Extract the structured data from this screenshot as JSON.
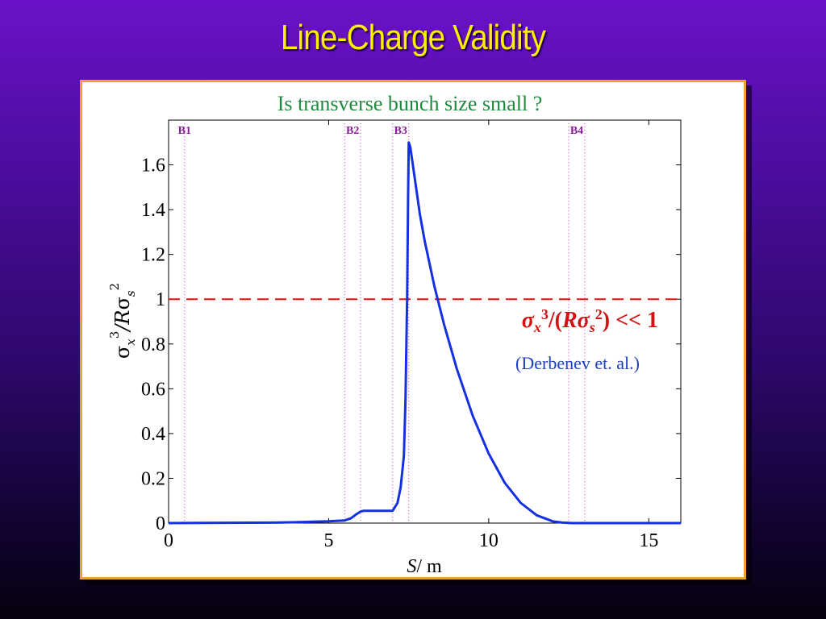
{
  "slide": {
    "title": "Line-Charge Validity"
  },
  "chart_data": {
    "type": "line",
    "title": "Is transverse bunch size small ?",
    "xlabel_italic": "S",
    "xlabel_unit": "/ m",
    "ylabel": "σ_x^3/Rσ_s^2",
    "xlim": [
      0,
      16
    ],
    "ylim": [
      0,
      1.8
    ],
    "xticks": [
      0,
      5,
      10,
      15
    ],
    "yticks": [
      0,
      0.2,
      0.4,
      0.6,
      0.8,
      1,
      1.2,
      1.4,
      1.6
    ],
    "grid": false,
    "series": [
      {
        "color": "#1530e0",
        "x": [
          0,
          3.3,
          4.0,
          4.5,
          5.0,
          5.5,
          5.7,
          5.85,
          6.0,
          6.1,
          7.0,
          7.15,
          7.25,
          7.35,
          7.4,
          7.45,
          7.48,
          7.5,
          7.55,
          7.6,
          7.7,
          7.85,
          8.0,
          8.3,
          8.6,
          9.0,
          9.5,
          10.0,
          10.5,
          11.0,
          11.5,
          12.0,
          12.3,
          12.6,
          13.0,
          16.0
        ],
        "y": [
          0,
          0.002,
          0.004,
          0.006,
          0.008,
          0.012,
          0.022,
          0.038,
          0.052,
          0.055,
          0.055,
          0.09,
          0.16,
          0.3,
          0.55,
          1.0,
          1.45,
          1.7,
          1.68,
          1.63,
          1.53,
          1.38,
          1.26,
          1.06,
          0.89,
          0.69,
          0.48,
          0.31,
          0.18,
          0.09,
          0.035,
          0.008,
          0.002,
          0,
          0,
          0
        ]
      }
    ],
    "threshold_line": {
      "y": 1,
      "color": "#e01010",
      "style": "dashed"
    },
    "bend_markers": {
      "labels": [
        "B1",
        "B2",
        "B3",
        "B4"
      ],
      "regions": [
        {
          "label": "B1",
          "x": [
            0.5
          ]
        },
        {
          "label": "B2",
          "x": [
            5.5,
            6.0
          ]
        },
        {
          "label": "B3",
          "x": [
            7.0,
            7.5
          ]
        },
        {
          "label": "B4",
          "x": [
            12.5,
            13.0
          ]
        }
      ],
      "color": "#d040d0",
      "label_color": "#8a1a9a"
    },
    "annotations": {
      "condition": "σx3/(Rσs2) << 1",
      "citation": "(Derbenev et. al.)"
    }
  }
}
